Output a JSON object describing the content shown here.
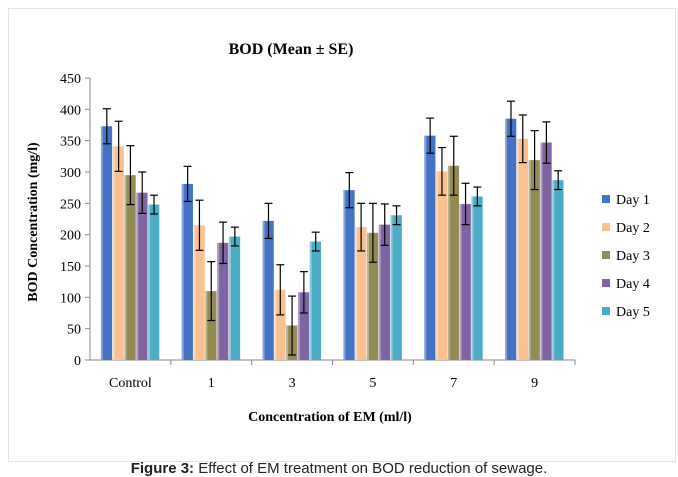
{
  "chart_data": {
    "type": "bar",
    "title": "BOD (Mean ± SE)",
    "xlabel": "Concentration of EM (ml/l)",
    "ylabel": "BOD Concentration (mg/l)",
    "ylim": [
      0,
      450
    ],
    "yticks": [
      0,
      50,
      100,
      150,
      200,
      250,
      300,
      350,
      400,
      450
    ],
    "categories": [
      "Control",
      "1",
      "3",
      "5",
      "7",
      "9"
    ],
    "legend_position": "right",
    "grid": false,
    "error_bars": true,
    "series": [
      {
        "name": "Day 1",
        "color": "#4472C4",
        "values": [
          373,
          281,
          222,
          271,
          358,
          385
        ],
        "errors": [
          28,
          28,
          28,
          28,
          28,
          28
        ]
      },
      {
        "name": "Day 2",
        "color": "#FAC090",
        "values": [
          341,
          215,
          112,
          212,
          301,
          353
        ],
        "errors": [
          40,
          40,
          40,
          38,
          38,
          38
        ]
      },
      {
        "name": "Day 3",
        "color": "#948A54",
        "values": [
          295,
          110,
          55,
          203,
          310,
          319
        ],
        "errors": [
          47,
          47,
          47,
          47,
          47,
          47
        ]
      },
      {
        "name": "Day 4",
        "color": "#8064A2",
        "values": [
          267,
          187,
          108,
          216,
          249,
          347
        ],
        "errors": [
          33,
          33,
          33,
          33,
          33,
          33
        ]
      },
      {
        "name": "Day 5",
        "color": "#4BACC6",
        "values": [
          248,
          197,
          189,
          231,
          261,
          287
        ],
        "errors": [
          15,
          15,
          15,
          15,
          15,
          15
        ]
      }
    ]
  },
  "caption": {
    "label": "Figure 3:",
    "text": " Effect of EM treatment on BOD reduction of sewage."
  }
}
